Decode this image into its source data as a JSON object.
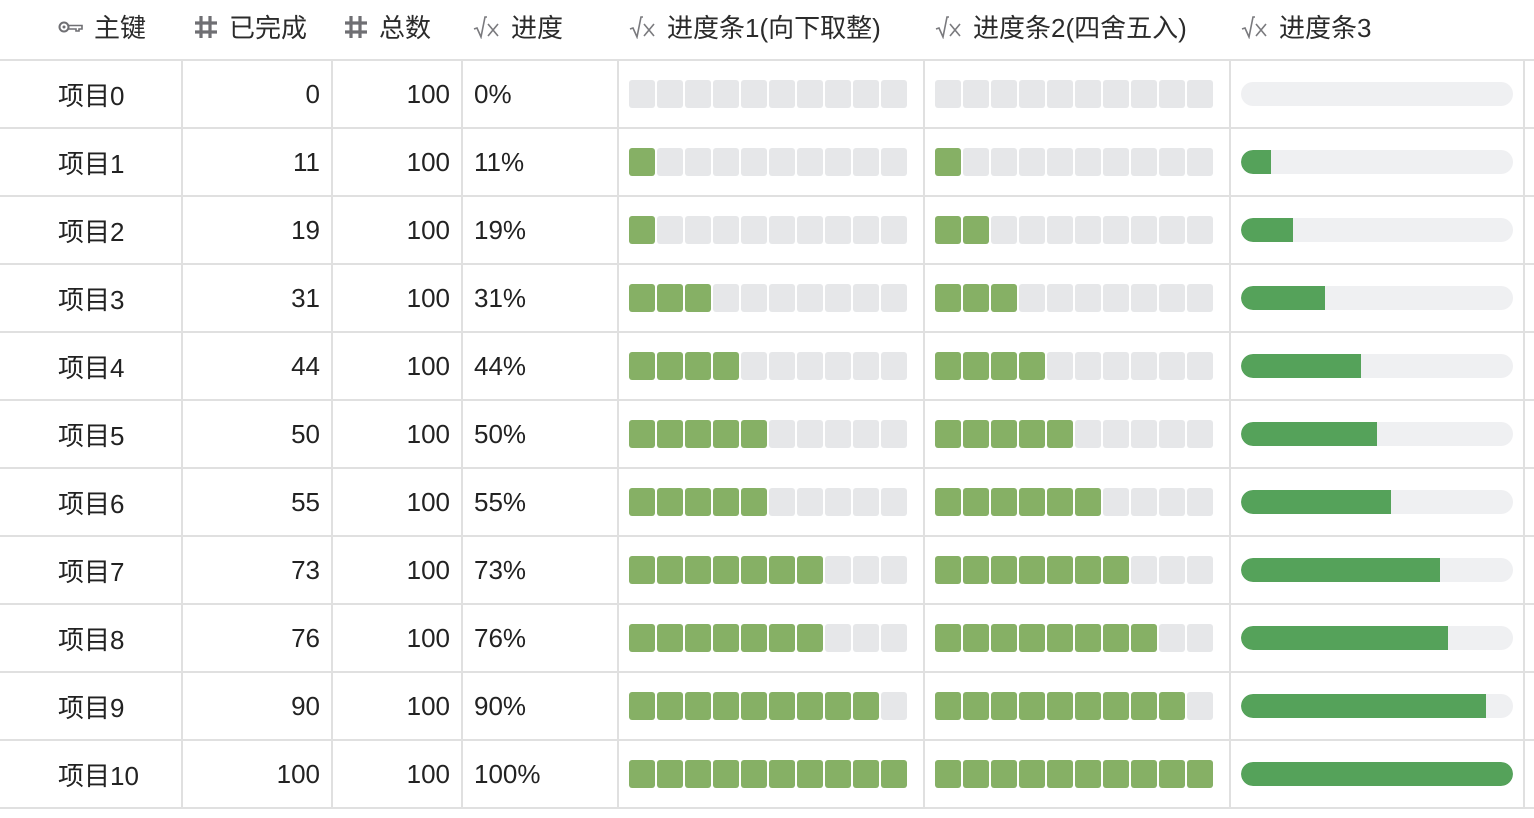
{
  "header": {
    "columns": [
      {
        "label": "主键",
        "icon": "key-icon"
      },
      {
        "label": "已完成",
        "icon": "number-hash-icon"
      },
      {
        "label": "总数",
        "icon": "number-hash-icon"
      },
      {
        "label": "进度",
        "icon": "formula-sqrt-icon"
      },
      {
        "label": "进度条1(向下取整)",
        "icon": "formula-sqrt-icon"
      },
      {
        "label": "进度条2(四舍五入)",
        "icon": "formula-sqrt-icon"
      },
      {
        "label": "进度条3",
        "icon": "formula-sqrt-icon"
      }
    ]
  },
  "colors": {
    "segment_on": "#86b065",
    "segment_off": "#e6e7e9",
    "pill_fill": "#55a25a",
    "pill_track": "#eff0f2",
    "grid_line": "#e0e0e0"
  },
  "rows": [
    {
      "name": "项目0",
      "done": "0",
      "total": "100",
      "progress": "0%",
      "bar1_segments": 0,
      "bar2_segments": 0,
      "bar3_pct": 0
    },
    {
      "name": "项目1",
      "done": "11",
      "total": "100",
      "progress": "11%",
      "bar1_segments": 1,
      "bar2_segments": 1,
      "bar3_pct": 11
    },
    {
      "name": "项目2",
      "done": "19",
      "total": "100",
      "progress": "19%",
      "bar1_segments": 1,
      "bar2_segments": 2,
      "bar3_pct": 19
    },
    {
      "name": "项目3",
      "done": "31",
      "total": "100",
      "progress": "31%",
      "bar1_segments": 3,
      "bar2_segments": 3,
      "bar3_pct": 31
    },
    {
      "name": "项目4",
      "done": "44",
      "total": "100",
      "progress": "44%",
      "bar1_segments": 4,
      "bar2_segments": 4,
      "bar3_pct": 44
    },
    {
      "name": "项目5",
      "done": "50",
      "total": "100",
      "progress": "50%",
      "bar1_segments": 5,
      "bar2_segments": 5,
      "bar3_pct": 50
    },
    {
      "name": "项目6",
      "done": "55",
      "total": "100",
      "progress": "55%",
      "bar1_segments": 5,
      "bar2_segments": 6,
      "bar3_pct": 55
    },
    {
      "name": "项目7",
      "done": "73",
      "total": "100",
      "progress": "73%",
      "bar1_segments": 7,
      "bar2_segments": 7,
      "bar3_pct": 73
    },
    {
      "name": "项目8",
      "done": "76",
      "total": "100",
      "progress": "76%",
      "bar1_segments": 7,
      "bar2_segments": 8,
      "bar3_pct": 76
    },
    {
      "name": "项目9",
      "done": "90",
      "total": "100",
      "progress": "90%",
      "bar1_segments": 9,
      "bar2_segments": 9,
      "bar3_pct": 90
    },
    {
      "name": "项目10",
      "done": "100",
      "total": "100",
      "progress": "100%",
      "bar1_segments": 10,
      "bar2_segments": 10,
      "bar3_pct": 100
    }
  ]
}
